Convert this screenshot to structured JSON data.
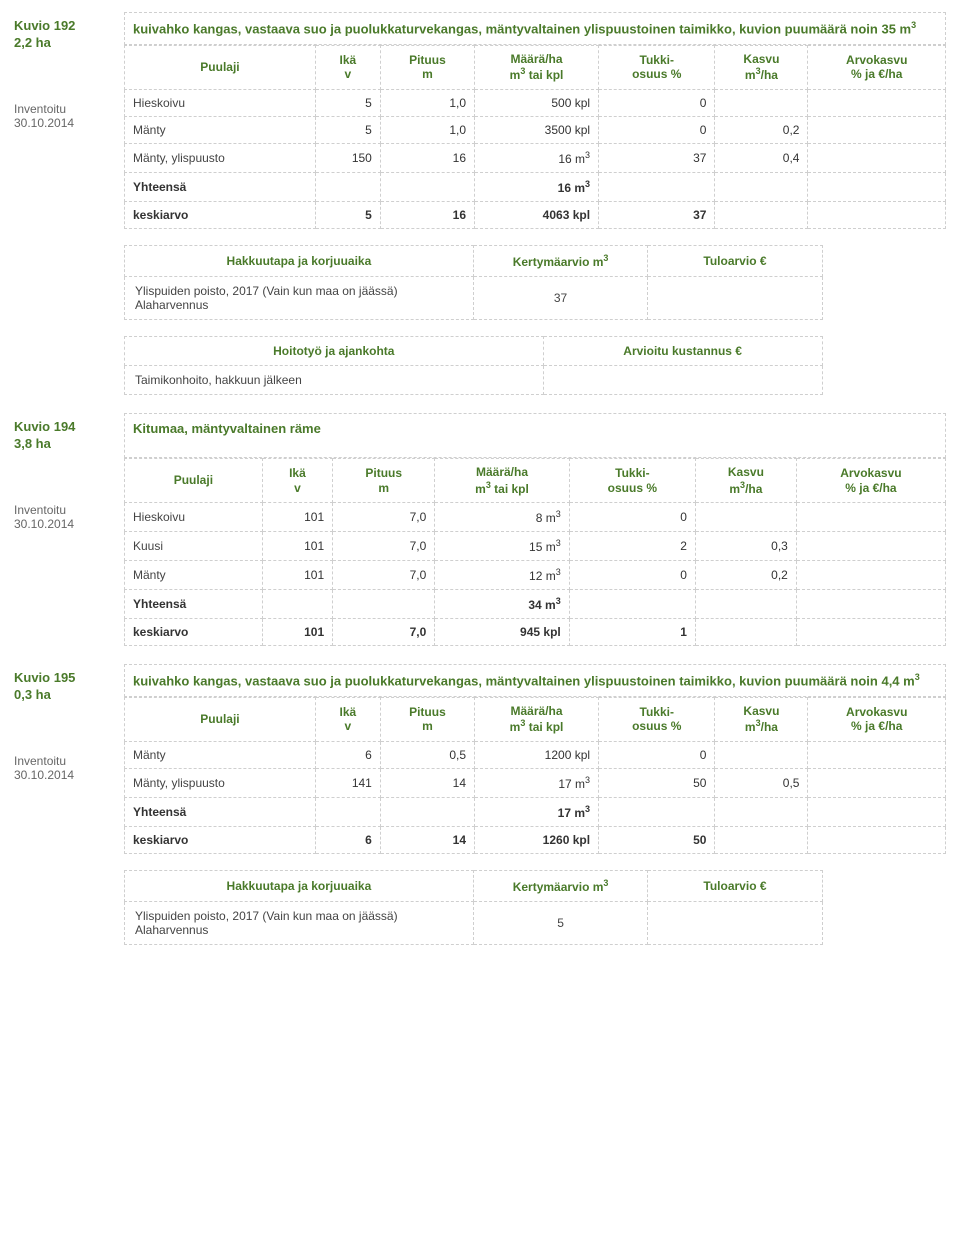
{
  "columns": {
    "puulaji": "Puulaji",
    "ika": "Ikä\nv",
    "pituus": "Pituus\nm",
    "maara": "Määrä/ha\nm³ tai kpl",
    "tukki": "Tukki-\nosuus %",
    "kasvu": "Kasvu\nm³/ha",
    "arvokasvu": "Arvokasvu\n% ja €/ha"
  },
  "labels": {
    "inventoitu": "Inventoitu",
    "date": "30.10.2014",
    "yhteensa": "Yhteensä",
    "keskiarvo": "keskiarvo",
    "hakkuutapa": "Hakkuutapa ja korjuuaika",
    "kertyma": "Kertymäarvio m³",
    "tuloarvio": "Tuloarvio €",
    "hoitotyo": "Hoitotyö ja ajankohta",
    "kustannus": "Arvioitu kustannus €"
  },
  "kuvio192": {
    "title": "Kuvio 192",
    "area": "2,2 ha",
    "desc": "kuivahko kangas, vastaava suo ja puolukkaturvekangas, mäntyvaltainen ylispuustoinen taimikko, kuvion puumäärä noin 35 m³",
    "rows": [
      {
        "sp": "Hieskoivu",
        "ika": "5",
        "pit": "1,0",
        "maara": "500 kpl",
        "tukki": "0",
        "kasvu": "",
        "arvo": ""
      },
      {
        "sp": "Mänty",
        "ika": "5",
        "pit": "1,0",
        "maara": "3500 kpl",
        "tukki": "0",
        "kasvu": "0,2",
        "arvo": ""
      },
      {
        "sp": "Mänty, ylispuusto",
        "ika": "150",
        "pit": "16",
        "maara": "16 m³",
        "tukki": "37",
        "kasvu": "0,4",
        "arvo": ""
      }
    ],
    "yht_maara": "16 m³",
    "kes": {
      "ika": "5",
      "pit": "16",
      "maara": "4063 kpl",
      "tukki": "37"
    },
    "hakkuu": {
      "desc": "Ylispuiden poisto, 2017 (Vain kun maa on jäässä)\nAlaharvennus",
      "kert": "37"
    },
    "hoito": {
      "desc": "Taimikonhoito, hakkuun jälkeen"
    }
  },
  "kuvio194": {
    "title": "Kuvio 194",
    "area": "3,8 ha",
    "desc": "Kitumaa, mäntyvaltainen räme",
    "rows": [
      {
        "sp": "Hieskoivu",
        "ika": "101",
        "pit": "7,0",
        "maara": "8 m³",
        "tukki": "0",
        "kasvu": "",
        "arvo": ""
      },
      {
        "sp": "Kuusi",
        "ika": "101",
        "pit": "7,0",
        "maara": "15 m³",
        "tukki": "2",
        "kasvu": "0,3",
        "arvo": ""
      },
      {
        "sp": "Mänty",
        "ika": "101",
        "pit": "7,0",
        "maara": "12 m³",
        "tukki": "0",
        "kasvu": "0,2",
        "arvo": ""
      }
    ],
    "yht_maara": "34 m³",
    "kes": {
      "ika": "101",
      "pit": "7,0",
      "maara": "945 kpl",
      "tukki": "1"
    }
  },
  "kuvio195": {
    "title": "Kuvio 195",
    "area": "0,3 ha",
    "desc": "kuivahko kangas, vastaava suo ja puolukkaturvekangas, mäntyvaltainen ylispuustoinen taimikko, kuvion puumäärä noin 4,4 m³",
    "rows": [
      {
        "sp": "Mänty",
        "ika": "6",
        "pit": "0,5",
        "maara": "1200 kpl",
        "tukki": "0",
        "kasvu": "",
        "arvo": ""
      },
      {
        "sp": "Mänty, ylispuusto",
        "ika": "141",
        "pit": "14",
        "maara": "17 m³",
        "tukki": "50",
        "kasvu": "0,5",
        "arvo": ""
      }
    ],
    "yht_maara": "17 m³",
    "kes": {
      "ika": "6",
      "pit": "14",
      "maara": "1260 kpl",
      "tukki": "50"
    },
    "hakkuu": {
      "desc": "Ylispuiden poisto, 2017 (Vain kun maa on jäässä)\nAlaharvennus",
      "kert": "5"
    }
  }
}
